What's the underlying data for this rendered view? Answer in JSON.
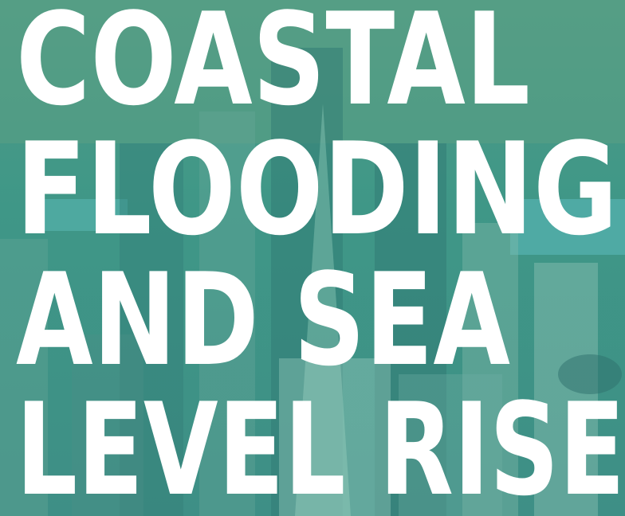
{
  "title_lines": [
    "COASTAL",
    "FLOODING",
    "AND SEA",
    "LEVEL RISE"
  ]
}
